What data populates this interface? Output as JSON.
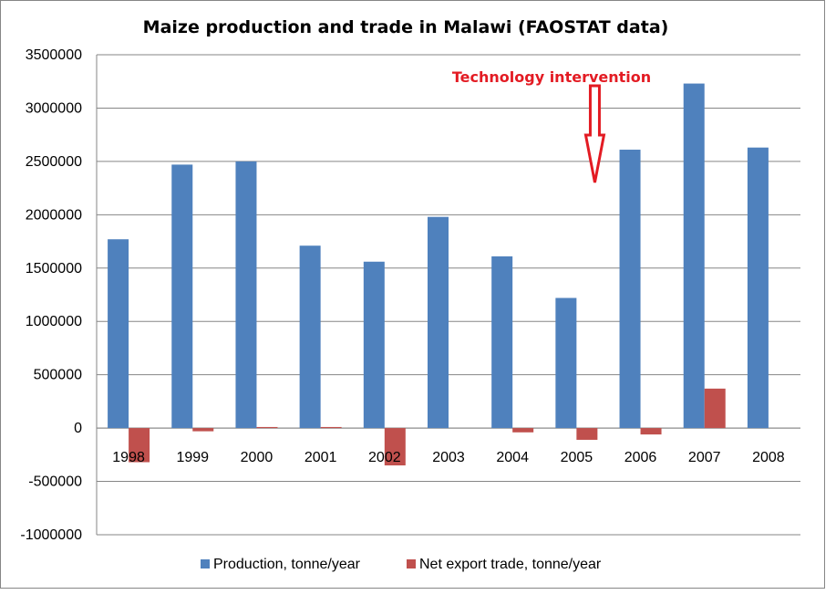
{
  "chart_data": {
    "type": "bar",
    "title": "Maize production and trade in Malawi (FAOSTAT data)",
    "xlabel": "",
    "ylabel": "",
    "categories": [
      "1998",
      "1999",
      "2000",
      "2001",
      "2002",
      "2003",
      "2004",
      "2005",
      "2006",
      "2007",
      "2008"
    ],
    "series": [
      {
        "name": "Production, tonne/year",
        "color": "#4f81bd",
        "values": [
          1770000,
          2470000,
          2500000,
          1710000,
          1560000,
          1980000,
          1610000,
          1220000,
          2610000,
          3230000,
          2630000
        ]
      },
      {
        "name": "Net export trade, tonne/year",
        "color": "#c0504d",
        "values": [
          -320000,
          -30000,
          10000,
          10000,
          -350000,
          0,
          -40000,
          -110000,
          -60000,
          370000,
          0
        ]
      }
    ],
    "ylim": [
      -1000000,
      3500000
    ],
    "yticks": [
      "3500000",
      "3000000",
      "2500000",
      "2000000",
      "1500000",
      "1000000",
      "500000",
      "0",
      "-500000",
      "-1000000"
    ],
    "grid": true,
    "legend": "bottom",
    "annotation": {
      "text": "Technology intervention",
      "target_category": "2005",
      "color": "#e31b23"
    }
  }
}
